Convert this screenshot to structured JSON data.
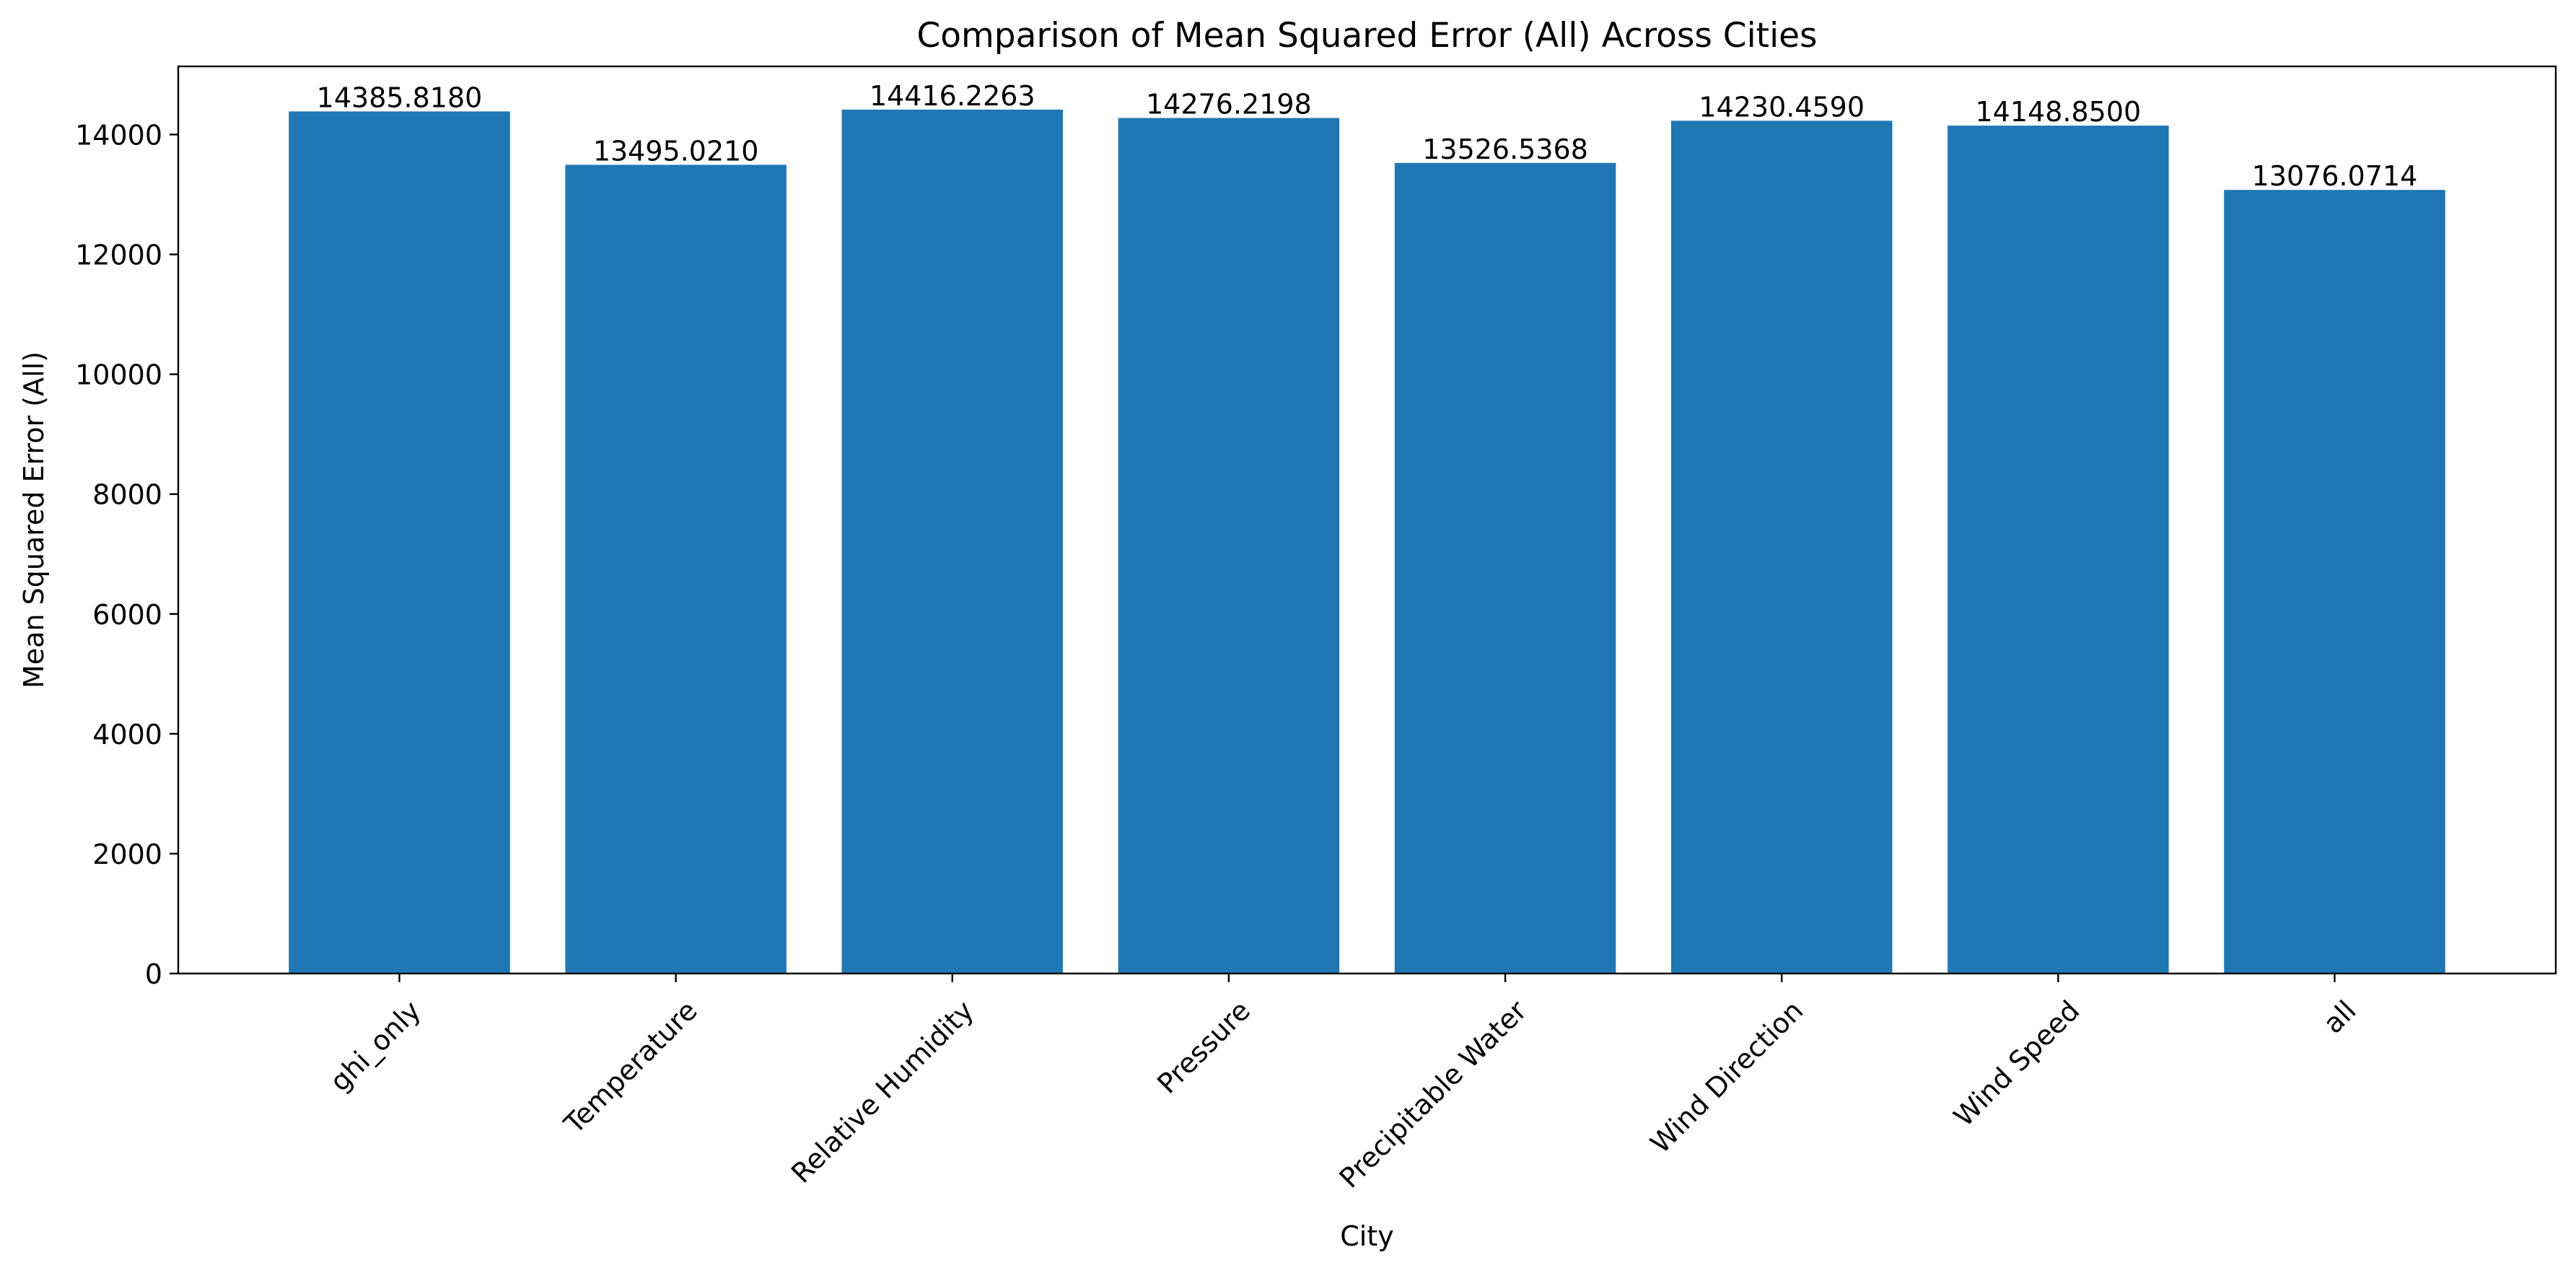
{
  "chart_data": {
    "type": "bar",
    "title": "Comparison of Mean Squared Error (All) Across Cities",
    "xlabel": "City",
    "ylabel": "Mean Squared Error (All)",
    "categories": [
      "ghi_only",
      "Temperature",
      "Relative Humidity",
      "Pressure",
      "Precipitable Water",
      "Wind Direction",
      "Wind Speed",
      "all"
    ],
    "values": [
      14385.818,
      13495.021,
      14416.2263,
      14276.2198,
      13526.5368,
      14230.459,
      14148.85,
      13076.0714
    ],
    "value_labels": [
      "14385.8180",
      "13495.0210",
      "14416.2263",
      "14276.2198",
      "13526.5368",
      "14230.4590",
      "14148.8500",
      "13076.0714"
    ],
    "ylim": [
      0,
      15137.5
    ],
    "yticks": [
      0,
      2000,
      4000,
      6000,
      8000,
      10000,
      12000,
      14000
    ],
    "ytick_labels": [
      "0",
      "2000",
      "4000",
      "6000",
      "8000",
      "10000",
      "12000",
      "14000"
    ],
    "grid": false,
    "legend": "none",
    "bar_color": "#1f77b4",
    "axis_color": "#000000",
    "background_color": "#ffffff"
  }
}
